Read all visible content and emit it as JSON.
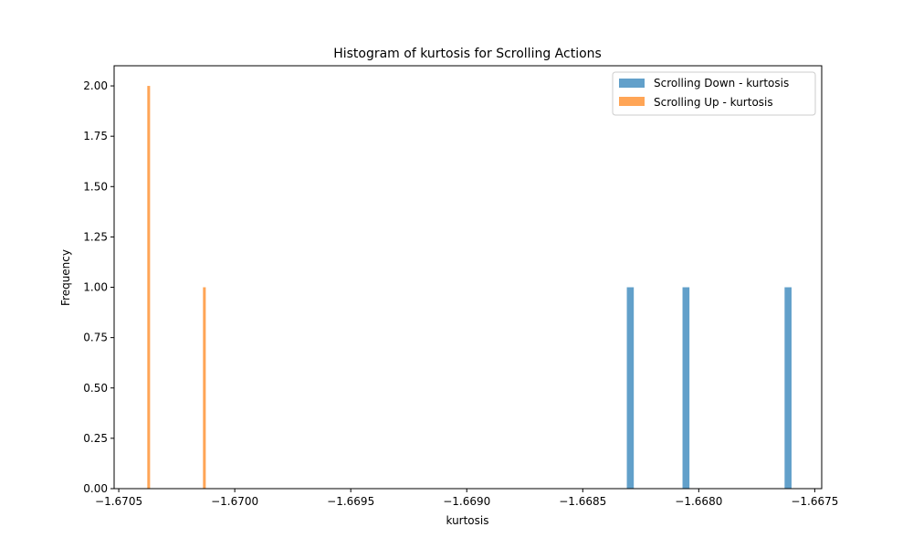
{
  "chart_data": {
    "type": "bar",
    "subtype": "histogram",
    "title": "Histogram of kurtosis for Scrolling Actions",
    "xlabel": "kurtosis",
    "ylabel": "Frequency",
    "xlim": [
      -1.67052,
      -1.66747
    ],
    "ylim": [
      0,
      2.1
    ],
    "xticks": [
      -1.6705,
      -1.67,
      -1.6695,
      -1.669,
      -1.6685,
      -1.668,
      -1.6675
    ],
    "xtick_labels": [
      "−1.6705",
      "−1.6700",
      "−1.6695",
      "−1.6690",
      "−1.6685",
      "−1.6680",
      "−1.6675"
    ],
    "yticks": [
      0,
      0.25,
      0.5,
      0.75,
      1,
      1.25,
      1.5,
      1.75,
      2
    ],
    "ytick_labels": [
      "0.00",
      "0.25",
      "0.50",
      "0.75",
      "1.00",
      "1.25",
      "1.50",
      "1.75",
      "2.00"
    ],
    "legend_position": "top-right",
    "grid": false,
    "series": [
      {
        "name": "Scrolling Down - kurtosis",
        "color": "#1f77b4",
        "opacity": 0.7,
        "bars": [
          {
            "x_left": -1.66831,
            "x_right": -1.66828,
            "count": 1
          },
          {
            "x_left": -1.66807,
            "x_right": -1.66804,
            "count": 1
          },
          {
            "x_left": -1.66763,
            "x_right": -1.6676,
            "count": 1
          }
        ]
      },
      {
        "name": "Scrolling Up - kurtosis",
        "color": "#ff7f0e",
        "opacity": 0.7,
        "bars": [
          {
            "x_left": -1.670377,
            "x_right": -1.670365,
            "count": 2
          },
          {
            "x_left": -1.670137,
            "x_right": -1.670125,
            "count": 1
          }
        ]
      }
    ]
  }
}
